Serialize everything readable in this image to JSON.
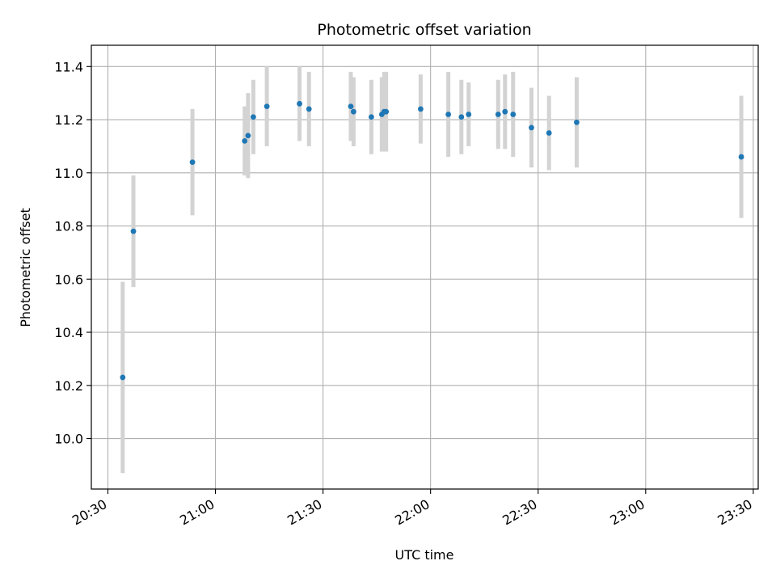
{
  "chart_data": {
    "type": "scatter",
    "title": "Photometric offset variation",
    "xlabel": "UTC time",
    "ylabel": "Photometric offset",
    "x_ticks": [
      "20:30",
      "21:00",
      "21:30",
      "22:00",
      "22:30",
      "23:00",
      "23:30"
    ],
    "y_ticks": [
      "10.0",
      "10.2",
      "10.4",
      "10.6",
      "10.8",
      "11.0",
      "11.2",
      "11.4"
    ],
    "xlim": [
      "20:25:23",
      "23:31:23"
    ],
    "ylim": [
      9.81,
      11.48
    ],
    "grid": true,
    "marker_color": "#1f77b4",
    "errorbar_color": "#d3d3d3",
    "points": [
      {
        "t": "20:34:08",
        "y": 10.23,
        "err": 0.36
      },
      {
        "t": "20:37:07",
        "y": 10.78,
        "err": 0.21
      },
      {
        "t": "20:53:35",
        "y": 11.04,
        "err": 0.2
      },
      {
        "t": "21:08:09",
        "y": 11.12,
        "err": 0.13
      },
      {
        "t": "21:09:06",
        "y": 11.14,
        "err": 0.16
      },
      {
        "t": "21:10:34",
        "y": 11.21,
        "err": 0.14
      },
      {
        "t": "21:14:20",
        "y": 11.25,
        "err": 0.15
      },
      {
        "t": "21:23:27",
        "y": 11.26,
        "err": 0.14
      },
      {
        "t": "21:26:05",
        "y": 11.24,
        "err": 0.14
      },
      {
        "t": "21:37:45",
        "y": 11.25,
        "err": 0.13
      },
      {
        "t": "21:38:31",
        "y": 11.23,
        "err": 0.13
      },
      {
        "t": "21:43:29",
        "y": 11.21,
        "err": 0.14
      },
      {
        "t": "21:46:24",
        "y": 11.22,
        "err": 0.14
      },
      {
        "t": "21:47:04",
        "y": 11.23,
        "err": 0.15
      },
      {
        "t": "21:47:36",
        "y": 11.23,
        "err": 0.15
      },
      {
        "t": "21:57:14",
        "y": 11.24,
        "err": 0.13
      },
      {
        "t": "22:04:57",
        "y": 11.22,
        "err": 0.16
      },
      {
        "t": "22:08:36",
        "y": 11.21,
        "err": 0.14
      },
      {
        "t": "22:10:37",
        "y": 11.22,
        "err": 0.12
      },
      {
        "t": "22:18:51",
        "y": 11.22,
        "err": 0.13
      },
      {
        "t": "22:20:46",
        "y": 11.23,
        "err": 0.14
      },
      {
        "t": "22:23:01",
        "y": 11.22,
        "err": 0.16
      },
      {
        "t": "22:28:08",
        "y": 11.17,
        "err": 0.15
      },
      {
        "t": "22:33:02",
        "y": 11.15,
        "err": 0.14
      },
      {
        "t": "22:40:45",
        "y": 11.19,
        "err": 0.17
      },
      {
        "t": "23:26:40",
        "y": 11.06,
        "err": 0.23
      }
    ]
  }
}
